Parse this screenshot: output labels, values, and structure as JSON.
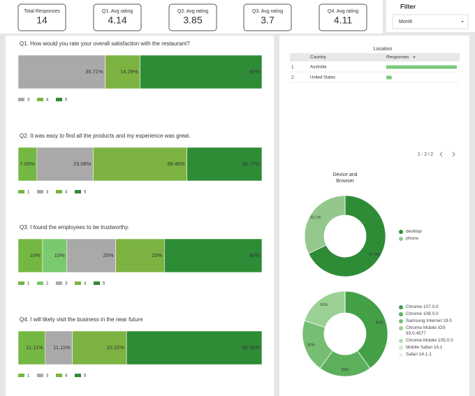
{
  "scorecards": [
    {
      "label": "Total Responses",
      "value": 14
    },
    {
      "label": "Q1. Avg rating",
      "value": 4.14
    },
    {
      "label": "Q2. Avg rating",
      "value": 3.85
    },
    {
      "label": "Q3. Avg rating",
      "value": 3.7
    },
    {
      "label": "Q4. Avg rating",
      "value": 4.11
    }
  ],
  "filter": {
    "title": "Filter",
    "control": "Month"
  },
  "table": {
    "title": "Location",
    "columns": [
      "Country",
      "Responses"
    ],
    "rows": [
      {
        "index": "1.",
        "country": "Australia",
        "responses": 13
      },
      {
        "index": "2.",
        "country": "United States",
        "responses": 1
      }
    ],
    "pagination": "1 - 2 / 2"
  },
  "chart_data": [
    {
      "type": "bar",
      "orientation": "horizontal",
      "stacked": true,
      "title": "Q1. How would you rate your overall satisfaction with the restaurant?",
      "categories": [
        null
      ],
      "xlim": [
        0,
        100
      ],
      "series": [
        {
          "name": "3",
          "color": "#a9a9a9",
          "values": [
            35.71
          ],
          "value_labels": [
            "35.71%"
          ]
        },
        {
          "name": "4",
          "color": "#7cb342",
          "values": [
            14.29
          ],
          "value_labels": [
            "14.29%"
          ]
        },
        {
          "name": "5",
          "color": "#2e8b36",
          "values": [
            50
          ],
          "value_labels": [
            "50%"
          ]
        }
      ]
    },
    {
      "type": "bar",
      "orientation": "horizontal",
      "stacked": true,
      "title": "Q2. It was easy to find all the products and my experience was great.",
      "categories": [
        null
      ],
      "xlim": [
        0,
        100
      ],
      "series": [
        {
          "name": "1",
          "color": "#74b843",
          "values": [
            7.69
          ],
          "value_labels": [
            "7.69%"
          ]
        },
        {
          "name": "3",
          "color": "#a9a9a9",
          "values": [
            23.08
          ],
          "value_labels": [
            "23.08%"
          ]
        },
        {
          "name": "4",
          "color": "#7cb342",
          "values": [
            38.46
          ],
          "value_labels": [
            "38.46%"
          ]
        },
        {
          "name": "5",
          "color": "#2e8b36",
          "values": [
            30.77
          ],
          "value_labels": [
            "30.77%"
          ]
        }
      ]
    },
    {
      "type": "bar",
      "orientation": "horizontal",
      "stacked": true,
      "title": "Q3. I found the employees to be trustworthy.",
      "categories": [
        null
      ],
      "xlim": [
        0,
        100
      ],
      "series": [
        {
          "name": "1",
          "color": "#74b843",
          "values": [
            10
          ],
          "value_labels": [
            "10%"
          ]
        },
        {
          "name": "2",
          "color": "#7bc96f",
          "values": [
            10
          ],
          "value_labels": [
            "10%"
          ]
        },
        {
          "name": "3",
          "color": "#a9a9a9",
          "values": [
            20
          ],
          "value_labels": [
            "20%"
          ]
        },
        {
          "name": "4",
          "color": "#7cb342",
          "values": [
            20
          ],
          "value_labels": [
            "20%"
          ]
        },
        {
          "name": "5",
          "color": "#2e8b36",
          "values": [
            40
          ],
          "value_labels": [
            "40%"
          ]
        }
      ]
    },
    {
      "type": "bar",
      "orientation": "horizontal",
      "stacked": true,
      "title": "Q4. I will likely visit the business in the near future",
      "categories": [
        null
      ],
      "xlim": [
        0,
        100
      ],
      "series": [
        {
          "name": "1",
          "color": "#74b843",
          "values": [
            11.11
          ],
          "value_labels": [
            "11.11%"
          ]
        },
        {
          "name": "3",
          "color": "#a9a9a9",
          "values": [
            11.11
          ],
          "value_labels": [
            "11.11%"
          ]
        },
        {
          "name": "4",
          "color": "#7cb342",
          "values": [
            22.22
          ],
          "value_labels": [
            "22.22%"
          ]
        },
        {
          "name": "5",
          "color": "#2e8b36",
          "values": [
            55.56
          ],
          "value_labels": [
            "55.56%"
          ]
        }
      ]
    },
    {
      "type": "pie",
      "donut": true,
      "title": "Device and Browser",
      "categories": [
        "desktop",
        "phone"
      ],
      "values": [
        67.9,
        32.1
      ],
      "value_labels": [
        "67.9%",
        "32.1%"
      ],
      "colors": [
        "#2e8b36",
        "#93c78c"
      ]
    },
    {
      "type": "pie",
      "donut": true,
      "categories": [
        "Chrome 107.0.0",
        "Chrome 108.0.0",
        "Samsung Internet 19.0",
        "Chrome Mobile iOS 93.0.4577",
        "Chrome Mobile 105.0.0",
        "Mobile Safari 16.1",
        "Safari 14.1.1"
      ],
      "values": [
        40,
        20,
        20,
        20,
        0,
        0,
        0
      ],
      "value_labels": [
        "40%",
        "20%",
        "20%",
        "20%",
        null,
        null,
        null
      ],
      "colors": [
        "#43a047",
        "#5cb05c",
        "#76be72",
        "#9bd194",
        "#b5ddb0",
        "#cfe9cb",
        "#e5f3e2"
      ]
    }
  ]
}
